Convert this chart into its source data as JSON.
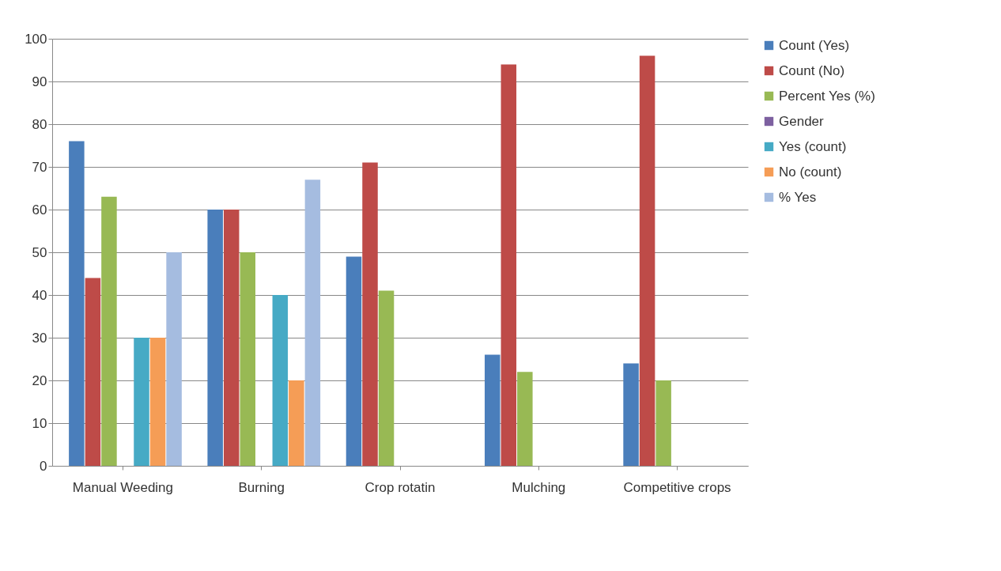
{
  "chart_data": {
    "type": "bar",
    "categories": [
      "Manual Weeding",
      "Burning",
      "Crop rotatin",
      "Mulching",
      "Competitive crops"
    ],
    "series": [
      {
        "name": "Count (Yes)",
        "color": "#4a7ebb",
        "values": [
          76,
          60,
          49,
          26,
          24
        ]
      },
      {
        "name": "Count (No)",
        "color": "#be4b48",
        "values": [
          44,
          60,
          71,
          94,
          96
        ]
      },
      {
        "name": "Percent Yes (%)",
        "color": "#98b954",
        "values": [
          63,
          50,
          41,
          22,
          20
        ]
      },
      {
        "name": "Gender",
        "color": "#7d60a0",
        "values": [
          0,
          0,
          null,
          null,
          null
        ]
      },
      {
        "name": "Yes (count)",
        "color": "#46aac5",
        "values": [
          30,
          40,
          null,
          null,
          null
        ]
      },
      {
        "name": "No (count)",
        "color": "#f59d56",
        "values": [
          30,
          20,
          null,
          null,
          null
        ]
      },
      {
        "name": "% Yes",
        "color": "#a5bce0",
        "values": [
          50,
          67,
          null,
          null,
          null
        ]
      }
    ],
    "ylim": [
      0,
      100
    ],
    "yticks": [
      0,
      10,
      20,
      30,
      40,
      50,
      60,
      70,
      80,
      90,
      100
    ],
    "grid": "y",
    "legend": "right"
  }
}
